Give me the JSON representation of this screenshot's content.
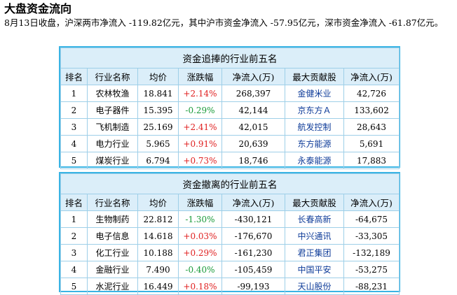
{
  "page": {
    "title": "大盘资金流向",
    "summary": "8月13日收盘，沪深两市净流入 -119.82亿元，其中沪市资金净流入 -57.95亿元，深市资金净流入 -61.87亿元。"
  },
  "colors": {
    "up": "#e02020",
    "down": "#1a9b3a",
    "stock_link": "#0f3c99",
    "border": "#3ab4e4",
    "header_bg": "#dbeef9"
  },
  "inflow_table": {
    "caption": "资金追捧的行业前五名",
    "headers": [
      "排名",
      "行业名称",
      "均价",
      "涨跌幅",
      "净流入(万)",
      "最大贡献股",
      "净流入(万)"
    ],
    "rows": [
      {
        "rank": "1",
        "industry": "农林牧渔",
        "avg_price": "18.841",
        "change": "+2.14%",
        "net_inflow": "268,397",
        "top_stock": "金健米业",
        "stock_inflow": "42,726",
        "dir": "up"
      },
      {
        "rank": "2",
        "industry": "电子器件",
        "avg_price": "15.395",
        "change": "-0.29%",
        "net_inflow": "42,144",
        "top_stock": "京东方Ａ",
        "stock_inflow": "133,602",
        "dir": "down"
      },
      {
        "rank": "3",
        "industry": "飞机制造",
        "avg_price": "25.169",
        "change": "+2.41%",
        "net_inflow": "42,015",
        "top_stock": "航发控制",
        "stock_inflow": "28,643",
        "dir": "up"
      },
      {
        "rank": "4",
        "industry": "电力行业",
        "avg_price": "5.965",
        "change": "+0.91%",
        "net_inflow": "20,639",
        "top_stock": "东方能源",
        "stock_inflow": "5,691",
        "dir": "up"
      },
      {
        "rank": "5",
        "industry": "煤炭行业",
        "avg_price": "6.794",
        "change": "+0.73%",
        "net_inflow": "18,746",
        "top_stock": "永泰能源",
        "stock_inflow": "17,883",
        "dir": "up"
      }
    ]
  },
  "outflow_table": {
    "caption": "资金撤离的行业前五名",
    "headers": [
      "排名",
      "行业名称",
      "均价",
      "涨跌幅",
      "净流入(万)",
      "最大贡献股",
      "净流入(万)"
    ],
    "rows": [
      {
        "rank": "1",
        "industry": "生物制药",
        "avg_price": "22.812",
        "change": "-1.30%",
        "net_inflow": "-430,121",
        "top_stock": "长春高新",
        "stock_inflow": "-64,675",
        "dir": "down"
      },
      {
        "rank": "2",
        "industry": "电子信息",
        "avg_price": "14.618",
        "change": "+0.03%",
        "net_inflow": "-176,670",
        "top_stock": "中兴通讯",
        "stock_inflow": "-33,305",
        "dir": "up"
      },
      {
        "rank": "3",
        "industry": "化工行业",
        "avg_price": "10.188",
        "change": "+0.29%",
        "net_inflow": "-161,230",
        "top_stock": "君正集团",
        "stock_inflow": "-132,189",
        "dir": "up"
      },
      {
        "rank": "4",
        "industry": "金融行业",
        "avg_price": "7.490",
        "change": "-0.40%",
        "net_inflow": "-105,459",
        "top_stock": "中国平安",
        "stock_inflow": "-53,275",
        "dir": "down"
      },
      {
        "rank": "5",
        "industry": "水泥行业",
        "avg_price": "16.449",
        "change": "+0.18%",
        "net_inflow": "-99,193",
        "top_stock": "天山股份",
        "stock_inflow": "-88,231",
        "dir": "up"
      }
    ]
  }
}
